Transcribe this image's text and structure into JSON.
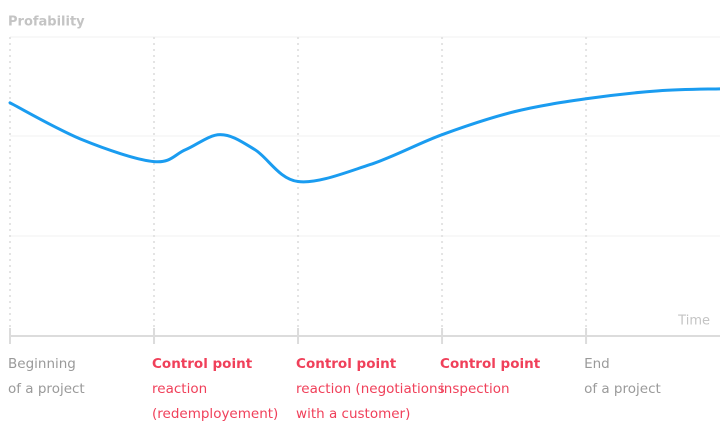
{
  "chart_data": {
    "type": "line",
    "y_label": "Profability",
    "x_label": "Time",
    "xlim": [
      0,
      4.93
    ],
    "ylim": [
      0,
      3
    ],
    "grid": true,
    "series": [
      {
        "color": "#1a9cf0",
        "x": [
          0,
          0.5,
          1,
          1.22,
          1.46,
          1.7,
          2,
          2.5,
          3,
          3.5,
          4,
          4.5,
          4.93
        ],
        "values": [
          2.34,
          1.97,
          1.75,
          1.87,
          2.02,
          1.87,
          1.55,
          1.72,
          2.02,
          2.25,
          2.38,
          2.46,
          2.48
        ]
      }
    ],
    "milestones": [
      {
        "x": 0,
        "color": "#9a9a9a",
        "lines": [
          "Beginning",
          "of a project"
        ]
      },
      {
        "x": 1,
        "color": "#f0405a",
        "lines": [
          "Control point",
          "reaction",
          "(redemployement)"
        ]
      },
      {
        "x": 2,
        "color": "#f0405a",
        "lines": [
          "Control point",
          "reaction (negotiations",
          "with a customer)"
        ]
      },
      {
        "x": 3,
        "color": "#f0405a",
        "lines": [
          "Control point",
          "inspection"
        ]
      },
      {
        "x": 4,
        "color": "#9a9a9a",
        "lines": [
          "End",
          "of a project"
        ]
      }
    ]
  }
}
